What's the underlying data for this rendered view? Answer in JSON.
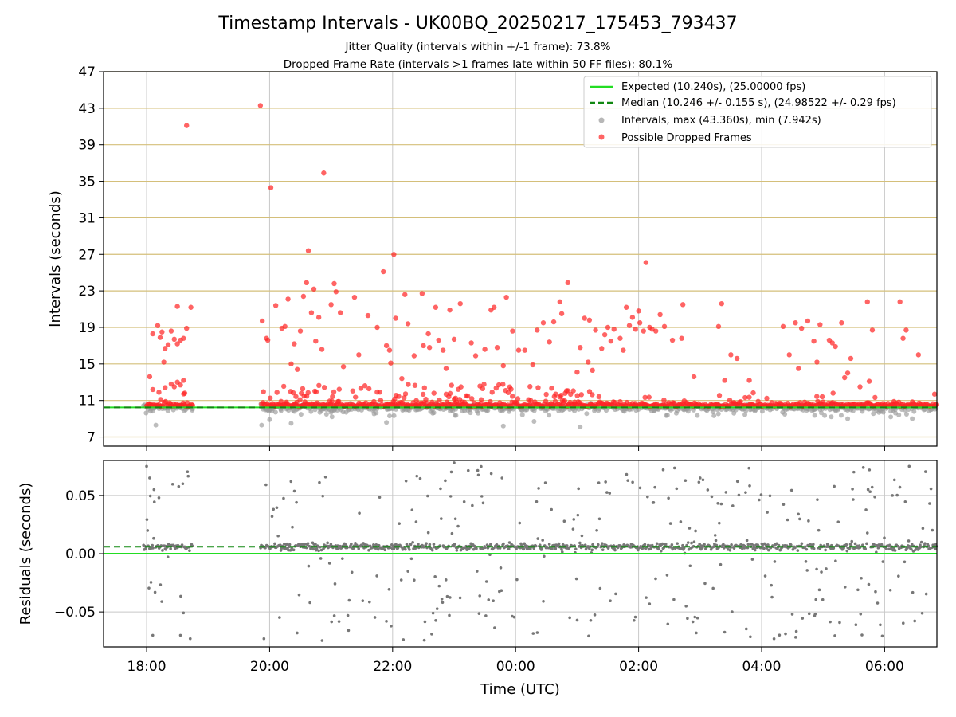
{
  "chart_data": [
    {
      "type": "scatter",
      "panel": "intervals",
      "title": "Timestamp Intervals - UK00BQ_20250217_175453_793437",
      "subtitle_line1": "Jitter Quality (intervals within +/-1 frame): 73.8%",
      "subtitle_line2": "Dropped Frame Rate (intervals >1 frames late within 50 FF files): 80.1%",
      "ylabel": "Intervals (seconds)",
      "ylim": [
        6,
        47
      ],
      "yticks": [
        7,
        11,
        15,
        19,
        23,
        27,
        31,
        35,
        39,
        43,
        47
      ],
      "xlim_hours": [
        17.3,
        30.85
      ],
      "grid": true,
      "legend_position": "top-right",
      "expected_line": {
        "value": 10.24,
        "label": "Expected (10.240s), (25.00000 fps)",
        "color": "#22dd22"
      },
      "median_line": {
        "value": 10.246,
        "label": "Median (10.246 +/- 0.155 s), (24.98522 +/- 0.29 fps)",
        "color": "#118811"
      },
      "series": [
        {
          "name": "Intervals, max (43.360s), min (7.942s)",
          "color": "#999999"
        },
        {
          "name": "Possible Dropped Frames",
          "color": "#ff2222"
        }
      ],
      "dropped_points": [
        [
          18.05,
          13.6
        ],
        [
          18.1,
          18.3
        ],
        [
          18.18,
          19.2
        ],
        [
          18.22,
          17.9
        ],
        [
          18.28,
          15.2
        ],
        [
          18.3,
          16.7
        ],
        [
          18.35,
          17.1
        ],
        [
          18.4,
          18.6
        ],
        [
          18.45,
          17.7
        ],
        [
          18.5,
          21.3
        ],
        [
          18.55,
          17.6
        ],
        [
          18.6,
          17.8
        ],
        [
          18.65,
          18.9
        ],
        [
          18.65,
          41.1
        ],
        [
          18.72,
          21.2
        ],
        [
          18.25,
          18.5
        ],
        [
          18.5,
          17.2
        ],
        [
          18.1,
          12.2
        ],
        [
          18.2,
          11.9
        ],
        [
          18.3,
          12.4
        ],
        [
          18.4,
          12.8
        ],
        [
          18.45,
          12.5
        ],
        [
          18.5,
          13.0
        ],
        [
          18.55,
          12.7
        ],
        [
          18.6,
          13.2
        ],
        [
          18.62,
          11.8
        ],
        [
          19.85,
          43.3
        ],
        [
          19.88,
          19.7
        ],
        [
          19.95,
          17.8
        ],
        [
          19.97,
          17.6
        ],
        [
          20.02,
          34.3
        ],
        [
          20.1,
          21.4
        ],
        [
          20.2,
          18.9
        ],
        [
          20.25,
          19.1
        ],
        [
          20.3,
          22.1
        ],
        [
          20.35,
          15.0
        ],
        [
          20.4,
          17.2
        ],
        [
          20.45,
          14.4
        ],
        [
          20.5,
          18.6
        ],
        [
          20.55,
          22.4
        ],
        [
          20.6,
          23.9
        ],
        [
          20.63,
          27.4
        ],
        [
          20.68,
          20.6
        ],
        [
          20.72,
          23.2
        ],
        [
          20.75,
          17.5
        ],
        [
          20.8,
          20.1
        ],
        [
          20.85,
          16.6
        ],
        [
          20.88,
          35.9
        ],
        [
          21.0,
          21.5
        ],
        [
          21.05,
          23.8
        ],
        [
          21.08,
          22.9
        ],
        [
          21.15,
          20.6
        ],
        [
          21.2,
          14.7
        ],
        [
          21.38,
          22.3
        ],
        [
          21.45,
          16.0
        ],
        [
          21.6,
          20.3
        ],
        [
          21.75,
          19.0
        ],
        [
          21.85,
          25.1
        ],
        [
          21.9,
          17.0
        ],
        [
          21.95,
          16.5
        ],
        [
          21.97,
          15.1
        ],
        [
          22.02,
          27.0
        ],
        [
          22.05,
          20.0
        ],
        [
          22.15,
          13.4
        ],
        [
          22.2,
          22.6
        ],
        [
          22.25,
          19.4
        ],
        [
          22.35,
          15.9
        ],
        [
          22.48,
          22.7
        ],
        [
          22.5,
          17.0
        ],
        [
          22.58,
          18.3
        ],
        [
          22.6,
          16.8
        ],
        [
          22.7,
          21.2
        ],
        [
          22.75,
          17.6
        ],
        [
          22.82,
          16.5
        ],
        [
          22.87,
          14.5
        ],
        [
          22.93,
          20.9
        ],
        [
          23.0,
          17.7
        ],
        [
          23.1,
          21.6
        ],
        [
          23.28,
          17.3
        ],
        [
          23.35,
          15.9
        ],
        [
          23.5,
          16.6
        ],
        [
          23.6,
          20.9
        ],
        [
          23.65,
          21.2
        ],
        [
          23.7,
          16.8
        ],
        [
          23.8,
          14.8
        ],
        [
          23.85,
          22.3
        ],
        [
          23.95,
          18.6
        ],
        [
          24.05,
          16.5
        ],
        [
          24.15,
          16.5
        ],
        [
          24.28,
          14.9
        ],
        [
          24.35,
          18.7
        ],
        [
          24.45,
          19.5
        ],
        [
          24.55,
          17.4
        ],
        [
          24.62,
          19.6
        ],
        [
          24.72,
          21.8
        ],
        [
          24.75,
          20.5
        ],
        [
          24.85,
          23.9
        ],
        [
          25.0,
          14.1
        ],
        [
          25.05,
          16.8
        ],
        [
          25.12,
          20.0
        ],
        [
          25.18,
          15.2
        ],
        [
          25.2,
          19.8
        ],
        [
          25.25,
          14.3
        ],
        [
          25.3,
          18.7
        ],
        [
          25.4,
          16.7
        ],
        [
          25.45,
          18.2
        ],
        [
          25.5,
          19.0
        ],
        [
          25.55,
          17.5
        ],
        [
          25.6,
          18.8
        ],
        [
          25.7,
          17.8
        ],
        [
          25.75,
          16.5
        ],
        [
          25.8,
          21.2
        ],
        [
          25.85,
          19.2
        ],
        [
          25.9,
          20.1
        ],
        [
          25.95,
          18.8
        ],
        [
          26.0,
          20.8
        ],
        [
          26.02,
          19.5
        ],
        [
          26.08,
          18.6
        ],
        [
          26.12,
          26.1
        ],
        [
          26.18,
          19.0
        ],
        [
          26.22,
          18.8
        ],
        [
          26.28,
          18.6
        ],
        [
          26.35,
          20.4
        ],
        [
          26.42,
          19.1
        ],
        [
          26.55,
          17.6
        ],
        [
          26.7,
          17.8
        ],
        [
          26.72,
          21.5
        ],
        [
          26.9,
          13.6
        ],
        [
          27.3,
          19.1
        ],
        [
          27.35,
          21.6
        ],
        [
          27.4,
          13.2
        ],
        [
          27.5,
          16.0
        ],
        [
          27.6,
          15.6
        ],
        [
          27.8,
          13.2
        ],
        [
          28.35,
          19.1
        ],
        [
          28.45,
          16.0
        ],
        [
          28.55,
          19.5
        ],
        [
          28.65,
          18.9
        ],
        [
          28.75,
          19.7
        ],
        [
          28.85,
          17.5
        ],
        [
          28.95,
          19.3
        ],
        [
          29.1,
          17.6
        ],
        [
          29.15,
          17.3
        ],
        [
          29.2,
          16.9
        ],
        [
          29.3,
          19.5
        ],
        [
          29.35,
          13.5
        ],
        [
          29.45,
          15.6
        ],
        [
          29.6,
          12.5
        ],
        [
          29.72,
          21.8
        ],
        [
          29.75,
          13.1
        ],
        [
          29.8,
          18.7
        ],
        [
          30.25,
          21.8
        ],
        [
          30.3,
          17.8
        ],
        [
          30.35,
          18.7
        ],
        [
          30.55,
          16.0
        ],
        [
          29.4,
          14.0
        ],
        [
          28.6,
          14.5
        ],
        [
          28.9,
          15.2
        ]
      ]
    },
    {
      "type": "scatter",
      "panel": "residuals",
      "xlabel": "Time (UTC)",
      "ylabel": "Residuals (seconds)",
      "ylim": [
        -0.08,
        0.08
      ],
      "yticks": [
        0.05,
        0.0,
        -0.05
      ],
      "ytick_labels": [
        "0.05",
        "0.00",
        "−0.05"
      ],
      "xticks": [
        "18:00",
        "20:00",
        "22:00",
        "00:00",
        "02:00",
        "04:00",
        "06:00"
      ],
      "xtick_hours": [
        18,
        20,
        22,
        24,
        26,
        28,
        30
      ],
      "expected_line": {
        "value": 0.0,
        "color": "#22dd22"
      },
      "median_line": {
        "value": 0.006,
        "color": "#118811"
      },
      "points_color": "#777777"
    }
  ]
}
